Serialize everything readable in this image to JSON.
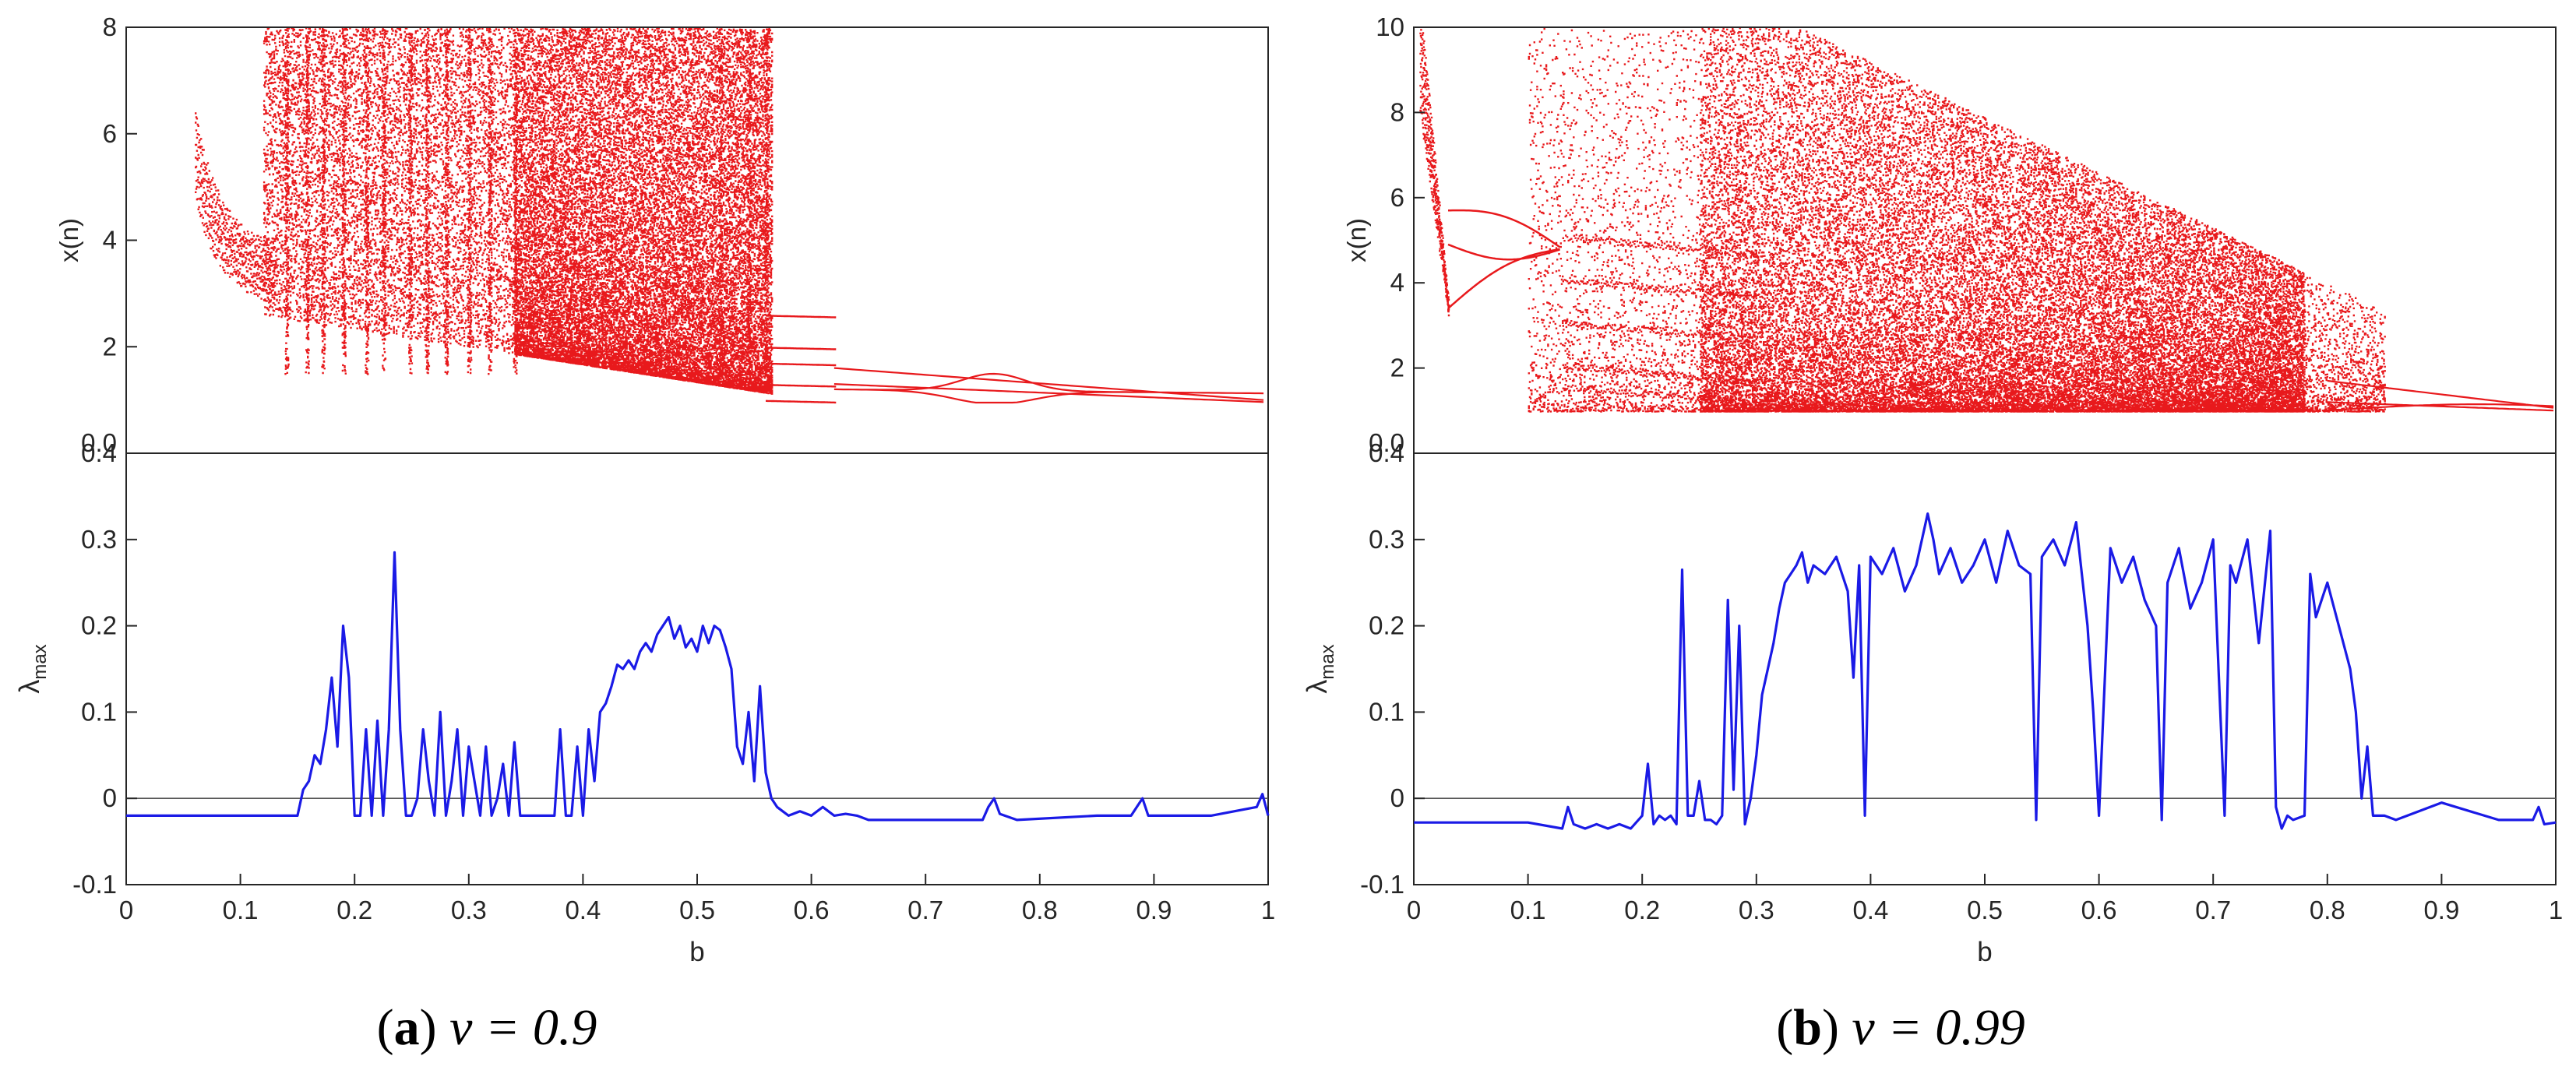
{
  "chart_data": [
    {
      "panel_label": "a",
      "param_text": "v = 0.9",
      "top": {
        "type": "scatter",
        "description": "bifurcation diagram",
        "ylabel": "x(n)",
        "xlim": [
          0,
          1
        ],
        "ylim": [
          0,
          8
        ],
        "yticks": [
          "0.0",
          "2",
          "4",
          "6",
          "8"
        ],
        "color": "#e8191c"
      },
      "bottom": {
        "type": "line",
        "ylabel": "λ",
        "ylabel_sub": "max",
        "xlabel": "b",
        "xlim": [
          0,
          1
        ],
        "ylim": [
          -0.1,
          0.4
        ],
        "yticks": [
          "-0.1",
          "0",
          "0.1",
          "0.2",
          "0.3",
          "0.4"
        ],
        "xticks": [
          "0",
          "0.1",
          "0.2",
          "0.3",
          "0.4",
          "0.5",
          "0.6",
          "0.7",
          "0.8",
          "0.9",
          "1"
        ],
        "zero_line": true,
        "color": "#1a1ae6",
        "x": [
          0,
          0.15,
          0.155,
          0.16,
          0.165,
          0.17,
          0.175,
          0.18,
          0.185,
          0.19,
          0.195,
          0.2,
          0.205,
          0.21,
          0.215,
          0.22,
          0.225,
          0.23,
          0.235,
          0.24,
          0.245,
          0.25,
          0.255,
          0.26,
          0.265,
          0.27,
          0.275,
          0.28,
          0.285,
          0.29,
          0.295,
          0.3,
          0.305,
          0.31,
          0.315,
          0.32,
          0.325,
          0.33,
          0.335,
          0.34,
          0.345,
          0.35,
          0.375,
          0.38,
          0.385,
          0.39,
          0.395,
          0.4,
          0.405,
          0.41,
          0.415,
          0.42,
          0.425,
          0.43,
          0.435,
          0.44,
          0.445,
          0.45,
          0.455,
          0.46,
          0.465,
          0.47,
          0.475,
          0.48,
          0.485,
          0.49,
          0.495,
          0.5,
          0.505,
          0.51,
          0.515,
          0.52,
          0.525,
          0.53,
          0.535,
          0.54,
          0.545,
          0.55,
          0.555,
          0.56,
          0.565,
          0.57,
          0.575,
          0.58,
          0.59,
          0.6,
          0.61,
          0.62,
          0.63,
          0.64,
          0.65,
          0.66,
          0.7,
          0.75,
          0.755,
          0.76,
          0.765,
          0.78,
          0.85,
          0.88,
          0.885,
          0.89,
          0.895,
          0.9,
          0.95,
          0.99,
          0.995,
          1.0
        ],
        "values": [
          -0.02,
          -0.02,
          0.01,
          0.02,
          0.05,
          0.04,
          0.08,
          0.14,
          0.06,
          0.2,
          0.14,
          -0.02,
          -0.02,
          0.08,
          -0.02,
          0.09,
          -0.02,
          0.08,
          0.285,
          0.08,
          -0.02,
          -0.02,
          0.0,
          0.08,
          0.02,
          -0.02,
          0.1,
          -0.02,
          0.02,
          0.08,
          -0.02,
          0.06,
          0.02,
          -0.02,
          0.06,
          -0.02,
          0.0,
          0.04,
          -0.02,
          0.065,
          -0.02,
          -0.02,
          -0.02,
          0.08,
          -0.02,
          -0.02,
          0.06,
          -0.02,
          0.08,
          0.02,
          0.1,
          0.11,
          0.13,
          0.155,
          0.15,
          0.16,
          0.15,
          0.17,
          0.18,
          0.17,
          0.19,
          0.2,
          0.21,
          0.185,
          0.2,
          0.175,
          0.185,
          0.17,
          0.2,
          0.18,
          0.2,
          0.195,
          0.175,
          0.15,
          0.06,
          0.04,
          0.1,
          0.02,
          0.13,
          0.03,
          0.0,
          -0.01,
          -0.015,
          -0.02,
          -0.015,
          -0.02,
          -0.01,
          -0.02,
          -0.018,
          -0.02,
          -0.025,
          -0.025,
          -0.025,
          -0.025,
          -0.01,
          0.0,
          -0.018,
          -0.025,
          -0.02,
          -0.02,
          -0.01,
          0.0,
          -0.02,
          -0.02,
          -0.02,
          -0.01,
          0.005,
          -0.02
        ]
      }
    },
    {
      "panel_label": "b",
      "param_text": "v = 0.99",
      "top": {
        "type": "scatter",
        "description": "bifurcation diagram",
        "ylabel": "x(n)",
        "xlim": [
          0,
          1
        ],
        "ylim": [
          0,
          10
        ],
        "yticks": [
          "0.0",
          "2",
          "4",
          "6",
          "8",
          "10"
        ],
        "color": "#e8191c"
      },
      "bottom": {
        "type": "line",
        "ylabel": "λ",
        "ylabel_sub": "max",
        "xlabel": "b",
        "xlim": [
          0,
          1
        ],
        "ylim": [
          -0.1,
          0.4
        ],
        "yticks": [
          "-0.1",
          "0",
          "0.1",
          "0.2",
          "0.3",
          "0.4"
        ],
        "xticks": [
          "0",
          "0.1",
          "0.2",
          "0.3",
          "0.4",
          "0.5",
          "0.6",
          "0.7",
          "0.8",
          "0.9",
          "1"
        ],
        "zero_line": true,
        "color": "#1a1ae6",
        "x": [
          0,
          0.1,
          0.13,
          0.135,
          0.14,
          0.15,
          0.16,
          0.17,
          0.18,
          0.19,
          0.2,
          0.205,
          0.21,
          0.215,
          0.22,
          0.225,
          0.23,
          0.235,
          0.24,
          0.245,
          0.25,
          0.255,
          0.26,
          0.265,
          0.27,
          0.275,
          0.28,
          0.285,
          0.29,
          0.295,
          0.3,
          0.305,
          0.31,
          0.315,
          0.32,
          0.325,
          0.33,
          0.335,
          0.34,
          0.345,
          0.35,
          0.36,
          0.37,
          0.38,
          0.385,
          0.39,
          0.395,
          0.4,
          0.41,
          0.42,
          0.43,
          0.44,
          0.45,
          0.455,
          0.46,
          0.47,
          0.48,
          0.49,
          0.5,
          0.51,
          0.52,
          0.53,
          0.54,
          0.545,
          0.55,
          0.56,
          0.57,
          0.58,
          0.59,
          0.595,
          0.6,
          0.61,
          0.62,
          0.63,
          0.64,
          0.65,
          0.655,
          0.66,
          0.67,
          0.68,
          0.69,
          0.7,
          0.71,
          0.715,
          0.72,
          0.73,
          0.74,
          0.75,
          0.755,
          0.76,
          0.765,
          0.77,
          0.78,
          0.785,
          0.79,
          0.8,
          0.81,
          0.82,
          0.825,
          0.83,
          0.835,
          0.84,
          0.85,
          0.86,
          0.87,
          0.9,
          0.95,
          0.98,
          0.985,
          0.99,
          1.0
        ],
        "values": [
          -0.028,
          -0.028,
          -0.035,
          -0.01,
          -0.03,
          -0.035,
          -0.03,
          -0.035,
          -0.03,
          -0.035,
          -0.02,
          0.04,
          -0.03,
          -0.02,
          -0.025,
          -0.02,
          -0.03,
          0.265,
          -0.02,
          -0.02,
          0.02,
          -0.025,
          -0.025,
          -0.03,
          -0.02,
          0.23,
          0.01,
          0.2,
          -0.03,
          0.0,
          0.05,
          0.12,
          0.15,
          0.18,
          0.22,
          0.25,
          0.26,
          0.27,
          0.285,
          0.25,
          0.27,
          0.26,
          0.28,
          0.24,
          0.14,
          0.27,
          -0.02,
          0.28,
          0.26,
          0.29,
          0.24,
          0.27,
          0.33,
          0.3,
          0.26,
          0.29,
          0.25,
          0.27,
          0.3,
          0.25,
          0.31,
          0.27,
          0.26,
          -0.025,
          0.28,
          0.3,
          0.27,
          0.32,
          0.2,
          0.1,
          -0.02,
          0.29,
          0.25,
          0.28,
          0.23,
          0.2,
          -0.025,
          0.25,
          0.29,
          0.22,
          0.25,
          0.3,
          -0.02,
          0.27,
          0.25,
          0.3,
          0.18,
          0.31,
          -0.01,
          -0.035,
          -0.02,
          -0.025,
          -0.02,
          0.26,
          0.21,
          0.25,
          0.2,
          0.15,
          0.1,
          0.0,
          0.06,
          -0.02,
          -0.02,
          -0.025,
          -0.02,
          -0.005,
          -0.025,
          -0.025,
          -0.01,
          -0.03,
          -0.028
        ]
      }
    }
  ]
}
